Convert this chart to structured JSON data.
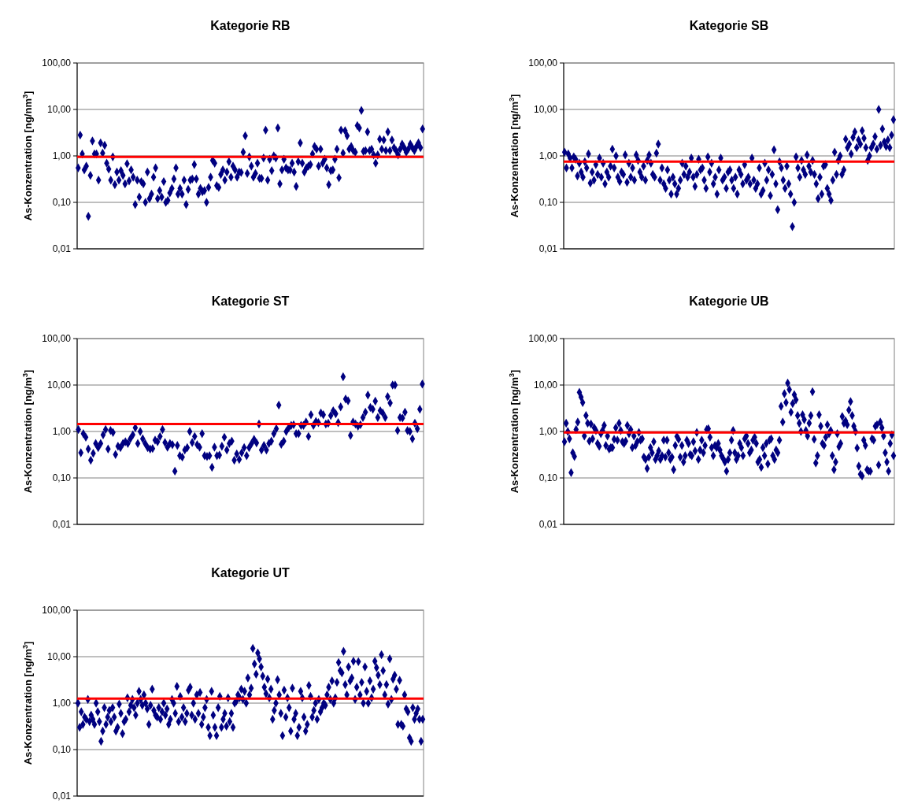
{
  "chart_data": [
    {
      "type": "scatter",
      "title": "Kategorie RB",
      "ylabel": "As-Konzentration [ng/nm$^{3}$]",
      "log": true,
      "grid": "y",
      "marker": "diamond",
      "tick_labels": "y",
      "ylim": [
        0.01,
        100
      ],
      "yticks": [
        {
          "value": 0.01,
          "label": "0,01"
        },
        {
          "value": 0.1,
          "label": "0,10"
        },
        {
          "value": 1,
          "label": "1,00"
        },
        {
          "value": 10,
          "label": "10,00"
        },
        {
          "value": 100,
          "label": "100,00"
        }
      ],
      "ref_lines": [
        {
          "axis": "y",
          "value": 0.95,
          "color": "#ff0000"
        }
      ],
      "categories": [
        null,
        null,
        null,
        null,
        null,
        null,
        null,
        null,
        null,
        null,
        null,
        null,
        null,
        null,
        null,
        null,
        null,
        null,
        null,
        null,
        null,
        null,
        null,
        null,
        null,
        null,
        null,
        null,
        null,
        null,
        null,
        null,
        null,
        null,
        null,
        null,
        null,
        null,
        null,
        null,
        null,
        null,
        null,
        null,
        null,
        null,
        null,
        null,
        null,
        null,
        null,
        null,
        null,
        null,
        null,
        null,
        null,
        null,
        null,
        null,
        null,
        null,
        null,
        null,
        null,
        null,
        null,
        null,
        null,
        null,
        null,
        null,
        null,
        null,
        null,
        null,
        null,
        null,
        null,
        null,
        null,
        null,
        null,
        null,
        null,
        null,
        null,
        null,
        null,
        null,
        null,
        null,
        null,
        null,
        null,
        null,
        null,
        null,
        null,
        null,
        null,
        null,
        null,
        null,
        null,
        null,
        null,
        null,
        null,
        null,
        null,
        null,
        null,
        null,
        null,
        null,
        null,
        null,
        null,
        null,
        null,
        null,
        null,
        null,
        null,
        null,
        null,
        null,
        null,
        null,
        null,
        null,
        null,
        null,
        null,
        null,
        null,
        null,
        null,
        null,
        null,
        null,
        null,
        null,
        null,
        null,
        null,
        null,
        null,
        null,
        null,
        null,
        null,
        null,
        null,
        null,
        null,
        null,
        null,
        null,
        null,
        null,
        null,
        null,
        null,
        null,
        null,
        null,
        null,
        null
      ],
      "series": [
        {
          "color": "#000080",
          "values": [
            0.55,
            2.8,
            1.1,
            0.5,
            0.6,
            0.05,
            0.38,
            2.1,
            1.1,
            1.1,
            0.3,
            1.9,
            1.15,
            1.7,
            0.7,
            0.52,
            0.3,
            0.95,
            0.24,
            0.45,
            0.3,
            0.48,
            0.38,
            0.25,
            0.68,
            0.29,
            0.5,
            0.35,
            0.09,
            0.3,
            0.13,
            0.28,
            0.25,
            0.1,
            0.45,
            0.12,
            0.15,
            0.35,
            0.55,
            0.12,
            0.18,
            0.13,
            0.28,
            0.1,
            0.11,
            0.16,
            0.2,
            0.32,
            0.55,
            0.15,
            0.2,
            0.15,
            0.3,
            0.09,
            0.19,
            0.3,
            0.32,
            0.65,
            0.32,
            0.15,
            0.2,
            0.17,
            0.18,
            0.1,
            0.21,
            0.35,
            0.8,
            0.7,
            0.23,
            0.21,
            0.4,
            0.5,
            0.3,
            0.45,
            0.75,
            0.35,
            0.6,
            0.5,
            0.35,
            0.45,
            0.44,
            1.2,
            2.7,
            0.42,
            0.95,
            0.6,
            0.35,
            0.42,
            0.7,
            0.33,
            0.33,
            0.9,
            3.6,
            0.3,
            0.85,
            0.48,
            1.0,
            0.9,
            4.0,
            0.25,
            0.5,
            0.85,
            0.55,
            0.5,
            0.5,
            0.7,
            0.45,
            0.22,
            0.75,
            1.9,
            0.7,
            0.45,
            0.55,
            0.6,
            0.65,
            1.1,
            1.6,
            1.4,
            0.6,
            1.4,
            0.7,
            0.85,
            0.55,
            0.24,
            0.48,
            0.5,
            0.85,
            1.4,
            0.34,
            3.6,
            1.15,
            3.5,
            2.7,
            1.4,
            1.6,
            1.3,
            1.2,
            4.5,
            4.0,
            9.5,
            1.25,
            1.3,
            3.3,
            1.3,
            1.4,
            1.05,
            0.7,
            1.05,
            2.3,
            1.4,
            2.2,
            1.3,
            3.3,
            1.3,
            2.2,
            1.5,
            1.3,
            1.05,
            1.4,
            1.8,
            1.5,
            1.2,
            1.4,
            1.8,
            1.5,
            1.3,
            1.6,
            1.9,
            1.5,
            3.8
          ]
        }
      ]
    },
    {
      "type": "scatter",
      "title": "Kategorie SB",
      "ylabel": "As-Konzentration [ng/m$^{3}$]",
      "log": true,
      "grid": "y",
      "marker": "diamond",
      "tick_labels": "y",
      "ylim": [
        0.01,
        100
      ],
      "yticks": [
        {
          "value": 0.01,
          "label": "0,01"
        },
        {
          "value": 0.1,
          "label": "0,10"
        },
        {
          "value": 1,
          "label": "1,00"
        },
        {
          "value": 10,
          "label": "10,00"
        },
        {
          "value": 100,
          "label": "100,00"
        }
      ],
      "ref_lines": [
        {
          "axis": "y",
          "value": 0.75,
          "color": "#ff0000"
        }
      ],
      "categories": [
        null,
        null,
        null,
        null,
        null,
        null,
        null,
        null,
        null,
        null,
        null,
        null,
        null,
        null,
        null,
        null,
        null,
        null,
        null,
        null,
        null,
        null,
        null,
        null,
        null,
        null,
        null,
        null,
        null,
        null,
        null,
        null,
        null,
        null,
        null,
        null,
        null,
        null,
        null,
        null,
        null,
        null,
        null,
        null,
        null,
        null,
        null,
        null,
        null,
        null,
        null,
        null,
        null,
        null,
        null,
        null,
        null,
        null,
        null,
        null,
        null,
        null,
        null,
        null,
        null,
        null,
        null,
        null,
        null,
        null,
        null,
        null,
        null,
        null,
        null,
        null,
        null,
        null,
        null,
        null,
        null,
        null,
        null,
        null,
        null,
        null,
        null,
        null,
        null,
        null,
        null,
        null,
        null,
        null,
        null,
        null,
        null,
        null,
        null,
        null,
        null,
        null,
        null,
        null,
        null,
        null,
        null,
        null,
        null,
        null,
        null,
        null,
        null,
        null,
        null,
        null,
        null,
        null,
        null,
        null,
        null,
        null,
        null,
        null,
        null,
        null,
        null,
        null,
        null,
        null,
        null,
        null,
        null,
        null,
        null,
        null,
        null,
        null,
        null,
        null,
        null,
        null,
        null,
        null,
        null,
        null,
        null,
        null,
        null,
        null,
        null,
        null,
        null,
        null,
        null,
        null,
        null,
        null,
        null,
        null,
        null,
        null,
        null,
        null,
        null,
        null,
        null,
        null,
        null,
        null,
        null,
        null,
        null,
        null,
        null,
        null,
        null,
        null,
        null,
        null
      ],
      "series": [
        {
          "color": "#000080",
          "values": [
            1.2,
            0.55,
            1.1,
            0.9,
            0.55,
            0.95,
            0.85,
            0.37,
            0.7,
            0.45,
            0.35,
            0.75,
            0.55,
            1.1,
            0.26,
            0.45,
            0.3,
            0.65,
            0.4,
            0.9,
            0.35,
            0.7,
            0.25,
            0.45,
            0.35,
            0.6,
            1.4,
            0.55,
            1.0,
            0.35,
            0.28,
            0.45,
            0.4,
            1.05,
            0.27,
            0.7,
            0.35,
            0.55,
            0.3,
            1.05,
            0.8,
            0.45,
            0.35,
            0.6,
            0.3,
            0.8,
            1.05,
            0.7,
            0.4,
            0.35,
            1.15,
            1.8,
            0.3,
            0.55,
            0.25,
            0.2,
            0.5,
            0.3,
            0.15,
            0.35,
            0.25,
            0.15,
            0.2,
            0.3,
            0.7,
            0.4,
            0.6,
            0.35,
            0.45,
            0.9,
            0.35,
            0.22,
            0.4,
            0.85,
            0.5,
            0.55,
            0.3,
            0.2,
            0.95,
            0.45,
            0.7,
            0.25,
            0.35,
            0.15,
            0.5,
            0.9,
            0.3,
            0.35,
            0.2,
            0.45,
            0.5,
            0.3,
            0.2,
            0.35,
            0.15,
            0.5,
            0.4,
            0.25,
            0.65,
            0.3,
            0.35,
            0.25,
            0.9,
            0.3,
            0.2,
            0.25,
            0.55,
            0.15,
            0.18,
            0.7,
            0.3,
            0.5,
            0.14,
            0.4,
            1.35,
            0.25,
            0.07,
            0.75,
            0.55,
            0.3,
            0.2,
            0.6,
            0.25,
            0.15,
            0.03,
            0.1,
            0.95,
            0.55,
            0.35,
            0.8,
            0.5,
            0.4,
            1.05,
            0.6,
            0.45,
            0.8,
            0.4,
            0.25,
            0.12,
            0.35,
            0.15,
            0.6,
            0.65,
            0.2,
            0.15,
            0.11,
            0.3,
            1.2,
            0.4,
            0.8,
            1.0,
            0.4,
            0.5,
            2.3,
            1.5,
            1.8,
            1.1,
            2.5,
            3.3,
            1.5,
            2.2,
            1.8,
            3.5,
            2.4,
            1.5,
            0.8,
            1.0,
            1.5,
            1.8,
            2.6,
            1.4,
            10,
            1.7,
            3.8,
            2.0,
            1.6,
            2.2,
            1.5,
            2.8,
            6.0
          ]
        }
      ]
    },
    {
      "type": "scatter",
      "title": "Kategorie ST",
      "ylabel": "As-Konzentration [ng/m$^{3}$]",
      "log": true,
      "grid": "y",
      "marker": "diamond",
      "tick_labels": "y",
      "ylim": [
        0.01,
        100
      ],
      "yticks": [
        {
          "value": 0.01,
          "label": "0,01"
        },
        {
          "value": 0.1,
          "label": "0,10"
        },
        {
          "value": 1,
          "label": "1,00"
        },
        {
          "value": 10,
          "label": "10,00"
        },
        {
          "value": 100,
          "label": "100,00"
        }
      ],
      "ref_lines": [
        {
          "axis": "y",
          "value": 1.45,
          "color": "#ff0000"
        }
      ],
      "categories": [
        null,
        null,
        null,
        null,
        null,
        null,
        null,
        null,
        null,
        null,
        null,
        null,
        null,
        null,
        null,
        null,
        null,
        null,
        null,
        null,
        null,
        null,
        null,
        null,
        null,
        null,
        null,
        null,
        null,
        null,
        null,
        null,
        null,
        null,
        null,
        null,
        null,
        null,
        null,
        null,
        null,
        null,
        null,
        null,
        null,
        null,
        null,
        null,
        null,
        null,
        null,
        null,
        null,
        null,
        null,
        null,
        null,
        null,
        null,
        null,
        null,
        null,
        null,
        null,
        null,
        null,
        null,
        null,
        null,
        null,
        null,
        null,
        null,
        null,
        null,
        null,
        null,
        null,
        null,
        null,
        null,
        null,
        null,
        null,
        null,
        null,
        null,
        null,
        null,
        null,
        null,
        null,
        null,
        null,
        null,
        null,
        null,
        null,
        null,
        null,
        null,
        null,
        null,
        null,
        null,
        null,
        null,
        null,
        null,
        null,
        null,
        null,
        null,
        null,
        null,
        null,
        null,
        null,
        null,
        null,
        null,
        null,
        null,
        null,
        null,
        null,
        null,
        null,
        null,
        null,
        null,
        null,
        null,
        null,
        null,
        null,
        null,
        null,
        null,
        null
      ],
      "series": [
        {
          "color": "#000080",
          "values": [
            1.1,
            0.35,
            0.9,
            0.75,
            0.42,
            0.24,
            0.34,
            0.55,
            0.45,
            0.55,
            0.85,
            1.1,
            0.42,
            1.05,
            0.95,
            0.32,
            0.48,
            0.45,
            0.55,
            0.6,
            0.55,
            0.7,
            0.85,
            1.2,
            0.55,
            1.0,
            0.7,
            0.55,
            0.45,
            0.42,
            0.43,
            0.65,
            0.6,
            0.78,
            1.1,
            0.58,
            0.46,
            0.55,
            0.52,
            0.14,
            0.5,
            0.3,
            0.28,
            0.4,
            0.45,
            1.0,
            0.58,
            0.78,
            0.52,
            0.46,
            0.9,
            0.3,
            0.29,
            0.3,
            0.17,
            0.46,
            0.3,
            0.31,
            0.48,
            0.75,
            0.4,
            0.55,
            0.62,
            0.24,
            0.33,
            0.25,
            0.35,
            0.45,
            0.3,
            0.45,
            0.55,
            0.68,
            0.57,
            1.45,
            0.4,
            0.5,
            0.4,
            0.55,
            0.62,
            0.9,
            1.15,
            3.7,
            0.53,
            0.62,
            1.0,
            1.2,
            1.35,
            1.4,
            0.9,
            0.9,
            1.35,
            1.35,
            1.6,
            0.78,
            2.3,
            1.35,
            1.65,
            1.55,
            2.5,
            2.3,
            1.45,
            1.5,
            2.2,
            2.8,
            2.4,
            1.55,
            3.4,
            15,
            5.0,
            4.6,
            0.82,
            1.6,
            1.45,
            1.3,
            1.4,
            2.0,
            2.6,
            6.1,
            3.3,
            3.0,
            4.5,
            2.0,
            2.8,
            2.5,
            2.0,
            5.6,
            4.1,
            10,
            10,
            1.05,
            2.0,
            1.95,
            2.6,
            1.05,
            1.0,
            0.7,
            1.5,
            1.15,
            3.0,
            10.5
          ]
        }
      ]
    },
    {
      "type": "scatter",
      "title": "Kategorie UB",
      "ylabel": "As-Konzentration [ng/m$^{3}$]",
      "log": true,
      "grid": "y",
      "marker": "diamond",
      "tick_labels": "y",
      "ylim": [
        0.01,
        100
      ],
      "yticks": [
        {
          "value": 0.01,
          "label": "0,01"
        },
        {
          "value": 0.1,
          "label": "0,10"
        },
        {
          "value": 1,
          "label": "1,00"
        },
        {
          "value": 10,
          "label": "10,00"
        },
        {
          "value": 100,
          "label": "100,00"
        }
      ],
      "ref_lines": [
        {
          "axis": "y",
          "value": 0.95,
          "color": "#ff0000"
        }
      ],
      "categories": [
        null,
        null,
        null,
        null,
        null,
        null,
        null,
        null,
        null,
        null,
        null,
        null,
        null,
        null,
        null,
        null,
        null,
        null,
        null,
        null,
        null,
        null,
        null,
        null,
        null,
        null,
        null,
        null,
        null,
        null,
        null,
        null,
        null,
        null,
        null,
        null,
        null,
        null,
        null,
        null,
        null,
        null,
        null,
        null,
        null,
        null,
        null,
        null,
        null,
        null,
        null,
        null,
        null,
        null,
        null,
        null,
        null,
        null,
        null,
        null,
        null,
        null,
        null,
        null,
        null,
        null,
        null,
        null,
        null,
        null,
        null,
        null,
        null,
        null,
        null,
        null,
        null,
        null,
        null,
        null,
        null,
        null,
        null,
        null,
        null,
        null,
        null,
        null,
        null,
        null,
        null,
        null,
        null,
        null,
        null,
        null,
        null,
        null,
        null,
        null,
        null,
        null,
        null,
        null,
        null,
        null,
        null,
        null,
        null,
        null,
        null,
        null,
        null,
        null,
        null,
        null,
        null,
        null,
        null,
        null,
        null,
        null,
        null,
        null,
        null,
        null,
        null,
        null,
        null,
        null,
        null,
        null,
        null,
        null,
        null,
        null,
        null,
        null,
        null,
        null,
        null,
        null,
        null,
        null,
        null,
        null,
        null,
        null,
        null,
        null,
        null,
        null,
        null,
        null,
        null,
        null,
        null,
        null,
        null,
        null,
        null,
        null,
        null,
        null,
        null,
        null,
        null,
        null,
        null,
        null,
        null,
        null,
        null,
        null,
        null,
        null,
        null,
        null,
        null,
        null,
        null,
        null,
        null,
        null,
        null,
        null,
        null,
        null,
        null,
        null,
        null,
        null,
        null,
        null,
        null,
        null,
        null,
        null,
        null,
        null
      ],
      "series": [
        {
          "color": "#000080",
          "values": [
            0.6,
            1.5,
            1.0,
            0.7,
            0.13,
            0.35,
            0.29,
            1.1,
            1.6,
            7.0,
            5.5,
            4.2,
            0.8,
            2.2,
            1.5,
            0.62,
            1.45,
            0.7,
            1.2,
            1.05,
            0.55,
            0.48,
            0.9,
            1.05,
            1.35,
            0.5,
            0.8,
            0.42,
            0.45,
            0.45,
            0.68,
            1.2,
            0.65,
            1.5,
            1.05,
            0.6,
            0.55,
            0.62,
            1.35,
            0.9,
            1.1,
            0.45,
            0.8,
            0.5,
            0.6,
            0.95,
            0.65,
            0.7,
            0.28,
            0.25,
            0.16,
            0.28,
            0.45,
            0.35,
            0.6,
            0.25,
            0.3,
            0.38,
            0.25,
            0.3,
            0.65,
            0.28,
            0.65,
            0.35,
            0.25,
            0.28,
            0.15,
            0.5,
            0.78,
            0.68,
            0.28,
            0.5,
            0.22,
            0.3,
            0.65,
            0.55,
            0.32,
            0.3,
            0.6,
            0.38,
            0.95,
            0.25,
            0.4,
            0.65,
            0.35,
            0.5,
            1.1,
            1.15,
            0.75,
            0.45,
            0.3,
            0.5,
            0.45,
            0.55,
            0.4,
            0.3,
            0.26,
            0.22,
            0.14,
            0.25,
            0.35,
            0.65,
            1.05,
            0.35,
            0.25,
            0.3,
            0.55,
            0.45,
            0.3,
            0.7,
            0.8,
            0.55,
            0.35,
            0.4,
            0.65,
            0.75,
            0.55,
            0.22,
            0.25,
            0.17,
            0.45,
            0.3,
            0.55,
            0.2,
            0.65,
            0.7,
            0.3,
            0.25,
            0.4,
            0.35,
            0.65,
            3.5,
            1.6,
            6.5,
            4.2,
            11,
            8,
            2.6,
            4.0,
            6.2,
            4.8,
            2.2,
            1.5,
            1.0,
            2.3,
            1.8,
            1.05,
            0.8,
            1.5,
            2.2,
            7.2,
            0.68,
            0.21,
            0.3,
            2.3,
            1.3,
            0.55,
            0.5,
            0.75,
            1.4,
            0.9,
            1.05,
            0.3,
            0.15,
            0.22,
            0.9,
            0.47,
            0.55,
            2.1,
            1.5,
            1.7,
            1.4,
            2.9,
            4.4,
            2.2,
            1.3,
            1.0,
            0.44,
            0.18,
            0.12,
            0.11,
            0.65,
            0.5,
            0.15,
            0.14,
            0.14,
            0.7,
            0.65,
            1.3,
            1.4,
            0.19,
            1.6,
            1.2,
            0.8,
            0.35,
            0.22,
            0.14,
            0.55,
            0.85,
            0.3
          ]
        }
      ]
    },
    {
      "type": "scatter",
      "title": "Kategorie UT",
      "ylabel": "As-Konzentration [ng/m$^{3}$]",
      "log": true,
      "grid": "y",
      "marker": "diamond",
      "tick_labels": "y",
      "ylim": [
        0.01,
        100
      ],
      "yticks": [
        {
          "value": 0.01,
          "label": "0,01"
        },
        {
          "value": 0.1,
          "label": "0,10"
        },
        {
          "value": 1,
          "label": "1,00"
        },
        {
          "value": 10,
          "label": "10,00"
        },
        {
          "value": 100,
          "label": "100,00"
        }
      ],
      "ref_lines": [
        {
          "axis": "y",
          "value": 1.25,
          "color": "#ff0000"
        }
      ],
      "categories": [
        null,
        null,
        null,
        null,
        null,
        null,
        null,
        null,
        null,
        null,
        null,
        null,
        null,
        null,
        null,
        null,
        null,
        null,
        null,
        null,
        null,
        null,
        null,
        null,
        null,
        null,
        null,
        null,
        null,
        null,
        null,
        null,
        null,
        null,
        null,
        null,
        null,
        null,
        null,
        null,
        null,
        null,
        null,
        null,
        null,
        null,
        null,
        null,
        null,
        null,
        null,
        null,
        null,
        null,
        null,
        null,
        null,
        null,
        null,
        null,
        null,
        null,
        null,
        null,
        null,
        null,
        null,
        null,
        null,
        null,
        null,
        null,
        null,
        null,
        null,
        null,
        null,
        null,
        null,
        null,
        null,
        null,
        null,
        null,
        null,
        null,
        null,
        null,
        null,
        null,
        null,
        null,
        null,
        null,
        null,
        null,
        null,
        null,
        null,
        null,
        null,
        null,
        null,
        null,
        null,
        null,
        null,
        null,
        null,
        null,
        null,
        null,
        null,
        null,
        null,
        null,
        null,
        null,
        null,
        null,
        null,
        null,
        null,
        null,
        null,
        null,
        null,
        null,
        null,
        null,
        null,
        null,
        null,
        null,
        null,
        null,
        null,
        null,
        null,
        null,
        null,
        null,
        null,
        null,
        null,
        null,
        null,
        null,
        null,
        null,
        null,
        null,
        null,
        null,
        null,
        null,
        null,
        null,
        null,
        null,
        null,
        null,
        null,
        null,
        null,
        null,
        null,
        null,
        null,
        null,
        null,
        null,
        null,
        null,
        null,
        null,
        null,
        null,
        null,
        null,
        null,
        null,
        null,
        null,
        null,
        null,
        null,
        null,
        null,
        null,
        null,
        null,
        null,
        null,
        null,
        null,
        null,
        null,
        null,
        null,
        null,
        null,
        null,
        null,
        null,
        null,
        null,
        null,
        null,
        null
      ],
      "series": [
        {
          "color": "#000080",
          "values": [
            1.0,
            0.3,
            0.65,
            0.35,
            0.5,
            0.45,
            1.2,
            0.4,
            0.55,
            0.45,
            0.35,
            1.0,
            0.65,
            0.4,
            0.15,
            0.25,
            0.8,
            0.35,
            0.5,
            0.7,
            0.4,
            0.8,
            0.5,
            0.25,
            0.3,
            0.95,
            0.6,
            0.22,
            0.4,
            0.45,
            1.3,
            0.65,
            0.9,
            1.2,
            0.8,
            0.55,
            1.0,
            1.8,
            1.2,
            0.9,
            1.5,
            1.0,
            0.75,
            0.35,
            0.9,
            2.0,
            0.7,
            0.55,
            0.5,
            0.8,
            0.45,
            0.65,
            1.0,
            0.55,
            0.75,
            0.35,
            0.45,
            1.2,
            1.0,
            0.6,
            2.3,
            0.4,
            1.4,
            0.5,
            0.8,
            0.4,
            0.6,
            1.9,
            2.2,
            0.55,
            1.0,
            0.45,
            1.5,
            0.6,
            1.7,
            0.35,
            0.5,
            0.8,
            1.2,
            0.3,
            0.2,
            1.8,
            0.55,
            0.3,
            0.2,
            0.8,
            1.4,
            0.3,
            0.45,
            0.6,
            0.32,
            1.3,
            0.4,
            0.6,
            0.3,
            1.0,
            1.1,
            1.5,
            1.3,
            2.0,
            1.2,
            1.8,
            1.0,
            3.5,
            1.5,
            2.1,
            15,
            7.0,
            4.2,
            12,
            9,
            6,
            3.8,
            2.2,
            1.6,
            3.3,
            1.3,
            2.0,
            0.45,
            0.7,
            1.0,
            3.2,
            1.5,
            0.6,
            0.2,
            1.9,
            0.5,
            1.3,
            0.8,
            0.25,
            2.1,
            0.45,
            0.6,
            0.2,
            0.3,
            1.8,
            1.3,
            0.5,
            0.25,
            0.35,
            2.4,
            1.4,
            0.5,
            0.7,
            1.0,
            0.45,
            1.2,
            0.65,
            0.8,
            1.0,
            0.9,
            1.5,
            2.2,
            1.2,
            3.0,
            1.0,
            1.3,
            2.8,
            7.5,
            5.0,
            4.5,
            13,
            2.5,
            1.5,
            6.0,
            3.0,
            3.5,
            8.0,
            1.2,
            2.2,
            7.8,
            1.5,
            2.8,
            1.0,
            6.0,
            1.8,
            1.0,
            3.0,
            1.3,
            2.0,
            8.0,
            5.8,
            4.0,
            2.5,
            11,
            5.0,
            1.5,
            2.5,
            0.95,
            9.0,
            1.2,
            3.3,
            4.0,
            2.0,
            0.35,
            3.1,
            0.35,
            0.32,
            1.5,
            0.75,
            0.65,
            0.18,
            0.15,
            0.8,
            0.45,
            0.6,
            0.75,
            0.45,
            0.15,
            0.45
          ]
        }
      ]
    }
  ]
}
